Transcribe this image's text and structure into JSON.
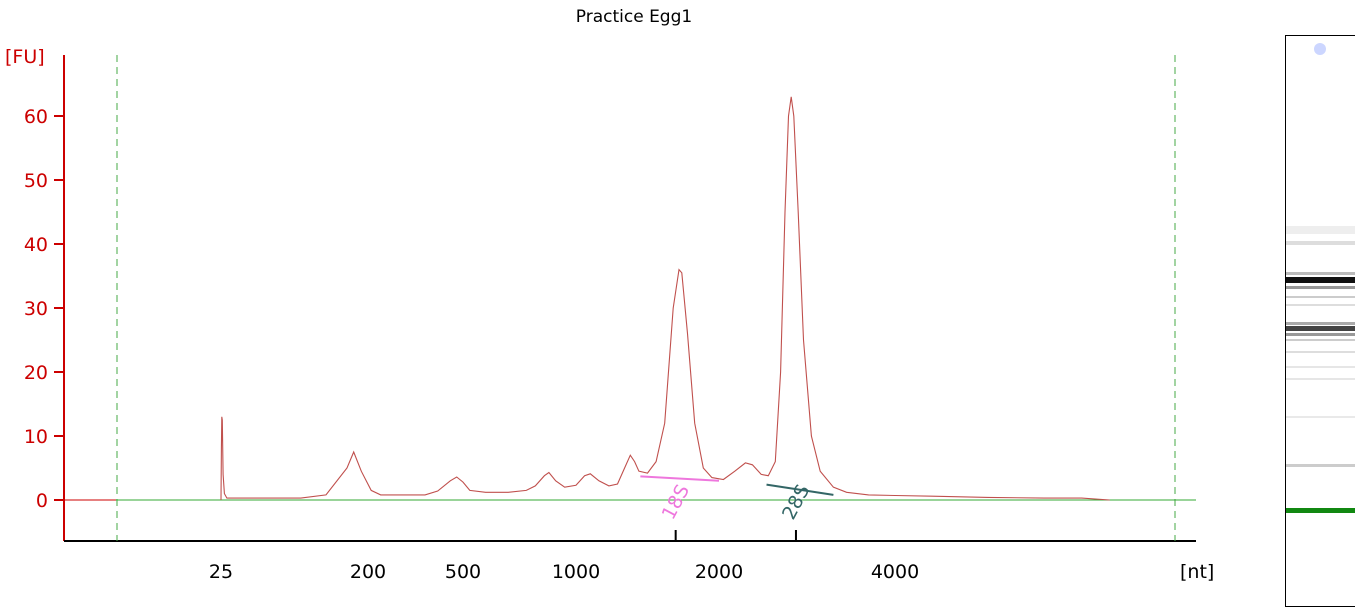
{
  "chart_data": {
    "type": "line",
    "title": "Practice Egg1",
    "ylabel": "[FU]",
    "xlabel": "[nt]",
    "ylim": [
      -6,
      70
    ],
    "yticks": [
      0,
      10,
      20,
      30,
      40,
      50,
      60
    ],
    "xticks": [
      "25",
      "200",
      "500",
      "1000",
      "2000",
      "4000"
    ],
    "grid": false,
    "series": [
      {
        "color": "#c0504d",
        "x_unit": "nt",
        "points": [
          [
            25,
            0.0
          ],
          [
            25.5,
            8.0
          ],
          [
            26,
            13.0
          ],
          [
            26.5,
            12.5
          ],
          [
            27.5,
            4.0
          ],
          [
            29,
            1.0
          ],
          [
            32,
            0.3
          ],
          [
            40,
            0.3
          ],
          [
            120,
            0.3
          ],
          [
            150,
            0.8
          ],
          [
            175,
            5.0
          ],
          [
            183,
            7.5
          ],
          [
            192,
            4.5
          ],
          [
            210,
            1.5
          ],
          [
            240,
            0.8
          ],
          [
            320,
            0.8
          ],
          [
            380,
            0.8
          ],
          [
            420,
            1.4
          ],
          [
            460,
            3.0
          ],
          [
            480,
            3.6
          ],
          [
            500,
            2.8
          ],
          [
            530,
            1.5
          ],
          [
            600,
            1.2
          ],
          [
            700,
            1.2
          ],
          [
            780,
            1.5
          ],
          [
            820,
            2.2
          ],
          [
            860,
            3.8
          ],
          [
            880,
            4.3
          ],
          [
            910,
            3.0
          ],
          [
            950,
            2.0
          ],
          [
            1000,
            2.3
          ],
          [
            1060,
            3.8
          ],
          [
            1100,
            4.1
          ],
          [
            1160,
            3.0
          ],
          [
            1230,
            2.2
          ],
          [
            1290,
            2.5
          ],
          [
            1340,
            5.0
          ],
          [
            1380,
            7.0
          ],
          [
            1410,
            6.0
          ],
          [
            1440,
            4.5
          ],
          [
            1500,
            4.2
          ],
          [
            1560,
            6.0
          ],
          [
            1620,
            12.0
          ],
          [
            1680,
            30.0
          ],
          [
            1720,
            36.0
          ],
          [
            1740,
            35.5
          ],
          [
            1780,
            26.0
          ],
          [
            1830,
            12.0
          ],
          [
            1890,
            5.0
          ],
          [
            1950,
            3.5
          ],
          [
            2050,
            3.2
          ],
          [
            2180,
            4.5
          ],
          [
            2300,
            5.8
          ],
          [
            2380,
            5.5
          ],
          [
            2480,
            4.0
          ],
          [
            2560,
            3.8
          ],
          [
            2640,
            6.0
          ],
          [
            2700,
            20.0
          ],
          [
            2750,
            45.0
          ],
          [
            2790,
            60.0
          ],
          [
            2820,
            63.0
          ],
          [
            2850,
            60.0
          ],
          [
            2900,
            45.0
          ],
          [
            2960,
            25.0
          ],
          [
            3050,
            10.0
          ],
          [
            3150,
            4.5
          ],
          [
            3300,
            2.0
          ],
          [
            3450,
            1.2
          ],
          [
            3700,
            0.8
          ],
          [
            4000,
            0.7
          ],
          [
            4400,
            0.6
          ],
          [
            5000,
            0.4
          ],
          [
            5600,
            0.3
          ],
          [
            6000,
            0.3
          ],
          [
            6300,
            0.0
          ]
        ]
      }
    ],
    "marker_lines": [
      {
        "label": "18S",
        "color": "#ee77dd",
        "from": [
          1450,
          3.7
        ],
        "to": [
          2000,
          3.0
        ]
      },
      {
        "label": "28S",
        "color": "#336666",
        "from": [
          2540,
          2.4
        ],
        "to": [
          3300,
          0.8
        ]
      }
    ],
    "boundaries_nt": [
      15,
      7000
    ],
    "baseline_color": "#33aa33",
    "axis_color": "#cc0000"
  }
}
